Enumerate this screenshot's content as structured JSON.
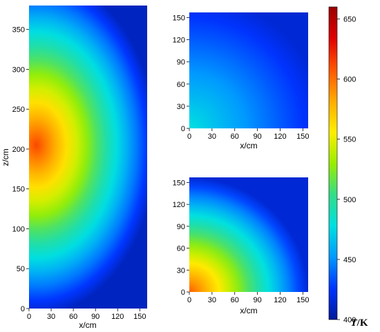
{
  "chart_data": {
    "type": "heatmap",
    "colorbar": {
      "label_italic": "T",
      "label_rest": "/K",
      "range": [
        400,
        660
      ],
      "ticks": [
        400,
        450,
        500,
        550,
        600,
        650
      ],
      "colors": [
        "#001a99",
        "#0033ff",
        "#0099ff",
        "#00e0e0",
        "#33dd88",
        "#99ee00",
        "#ffee00",
        "#ffaa00",
        "#ff5500",
        "#e00000",
        "#990000"
      ]
    },
    "panels": [
      {
        "id": "left",
        "xlabel": "x/cm",
        "ylabel": "z/cm",
        "xlim": [
          0,
          160
        ],
        "ylim": [
          0,
          380
        ],
        "xticks": [
          0,
          30,
          60,
          90,
          120,
          150
        ],
        "yticks": [
          0,
          50,
          100,
          150,
          200,
          250,
          300,
          350
        ],
        "field": {
          "center_x": 10,
          "center_y": 205,
          "peak": 612,
          "min": 410
        }
      },
      {
        "id": "top-right",
        "xlabel": "x/cm",
        "ylabel": "",
        "xlim": [
          0,
          157
        ],
        "ylim": [
          0,
          157
        ],
        "xticks": [
          0,
          30,
          60,
          90,
          120,
          150
        ],
        "yticks": [
          0,
          30,
          60,
          90,
          120,
          150
        ],
        "field": {
          "center_x": 0,
          "center_y": 0,
          "peak": 478,
          "min": 415
        }
      },
      {
        "id": "bottom-right",
        "xlabel": "x/cm",
        "ylabel": "",
        "xlim": [
          0,
          157
        ],
        "ylim": [
          0,
          157
        ],
        "xticks": [
          0,
          30,
          60,
          90,
          120,
          150
        ],
        "yticks": [
          0,
          30,
          60,
          90,
          120,
          150
        ],
        "field": {
          "center_x": 0,
          "center_y": 0,
          "peak": 605,
          "min": 415
        }
      }
    ]
  }
}
